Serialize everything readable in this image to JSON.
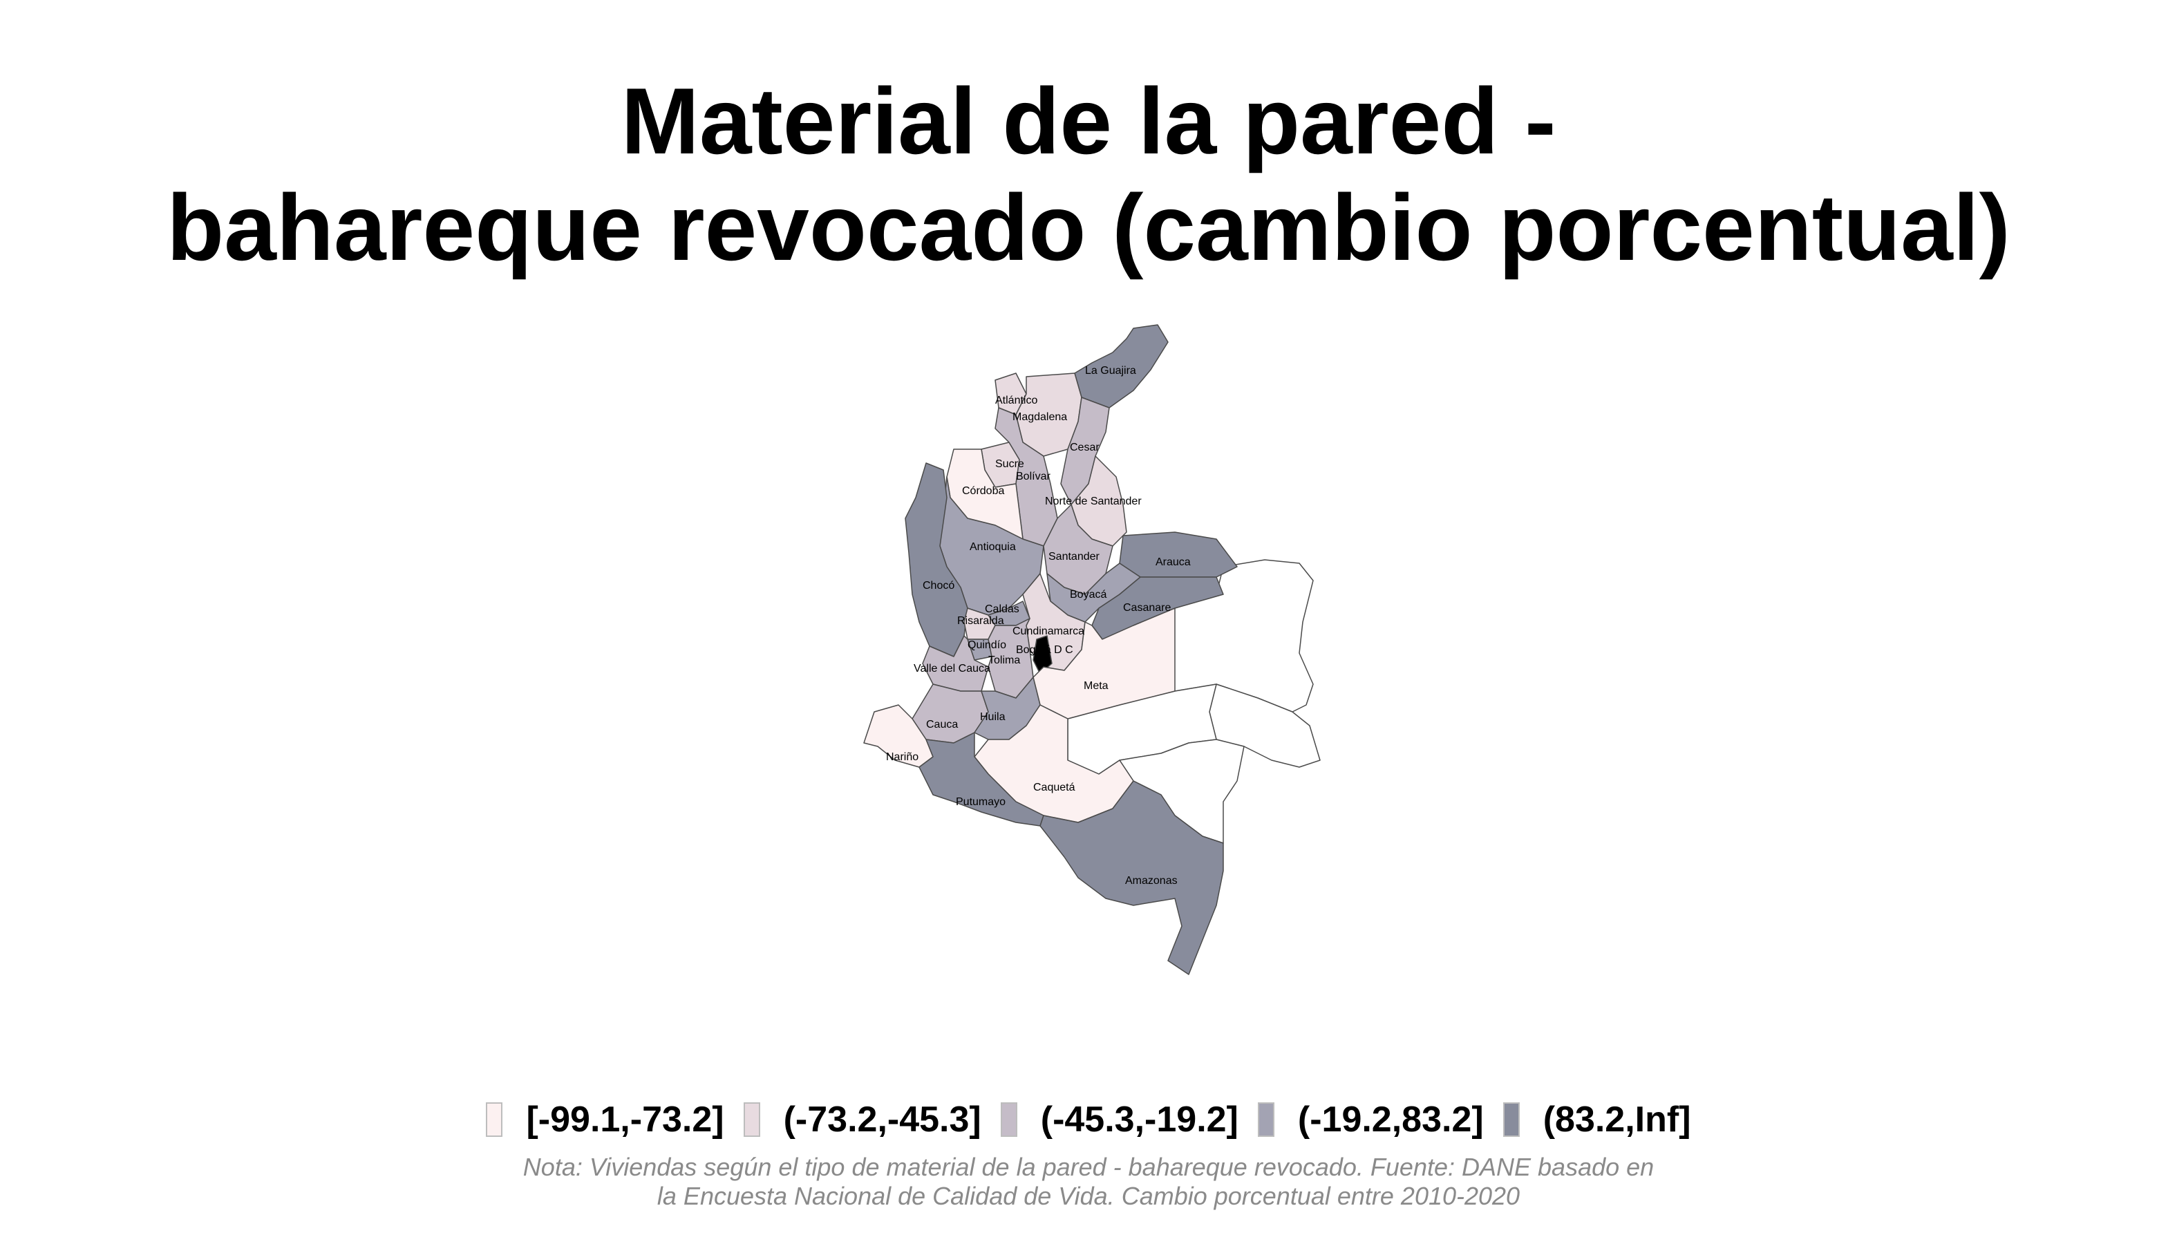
{
  "title": {
    "line1": "Material de la pared -",
    "line2": "bahareque revocado (cambio porcentual)"
  },
  "legend": {
    "items": [
      {
        "label": "[-99.1,-73.2]",
        "color": "#fcf1f1"
      },
      {
        "label": "(-73.2,-45.3]",
        "color": "#e8dbe0"
      },
      {
        "label": "(-45.3,-19.2]",
        "color": "#c5bcc8"
      },
      {
        "label": "(-19.2,83.2]",
        "color": "#a3a3b3"
      },
      {
        "label": "(83.2,Inf]",
        "color": "#888c9c"
      }
    ]
  },
  "map": {
    "no_data_color": "#ffffff",
    "regions": [
      {
        "name": "La Guajira",
        "class": 4
      },
      {
        "name": "Atlántico",
        "class": 1
      },
      {
        "name": "Magdalena",
        "class": 1
      },
      {
        "name": "Cesar",
        "class": 2
      },
      {
        "name": "Sucre",
        "class": 1
      },
      {
        "name": "Bolívar",
        "class": 2
      },
      {
        "name": "Córdoba",
        "class": 0
      },
      {
        "name": "Norte de Santander",
        "class": 1
      },
      {
        "name": "Antioquia",
        "class": 3
      },
      {
        "name": "Santander",
        "class": 2
      },
      {
        "name": "Arauca",
        "class": 4
      },
      {
        "name": "Chocó",
        "class": 4
      },
      {
        "name": "Boyacá",
        "class": 3
      },
      {
        "name": "Casanare",
        "class": 4
      },
      {
        "name": "Caldas",
        "class": 3
      },
      {
        "name": "Risaralda",
        "class": 1
      },
      {
        "name": "Cundinamarca",
        "class": 1
      },
      {
        "name": "Quindío",
        "class": 3
      },
      {
        "name": "Bogotá D C",
        "class": 0
      },
      {
        "name": "Tolima",
        "class": 2
      },
      {
        "name": "Valle del Cauca",
        "class": 2
      },
      {
        "name": "Meta",
        "class": 0
      },
      {
        "name": "Cauca",
        "class": 2
      },
      {
        "name": "Huila",
        "class": 3
      },
      {
        "name": "Nariño",
        "class": 0
      },
      {
        "name": "Caquetá",
        "class": 0
      },
      {
        "name": "Putumayo",
        "class": 4
      },
      {
        "name": "Amazonas",
        "class": 4
      }
    ]
  },
  "note": {
    "line1": "Nota: Viviendas según el tipo de material de la pared - bahareque revocado. Fuente: DANE basado en",
    "line2": "la Encuesta Nacional de Calidad de Vida. Cambio porcentual entre 2010-2020"
  }
}
